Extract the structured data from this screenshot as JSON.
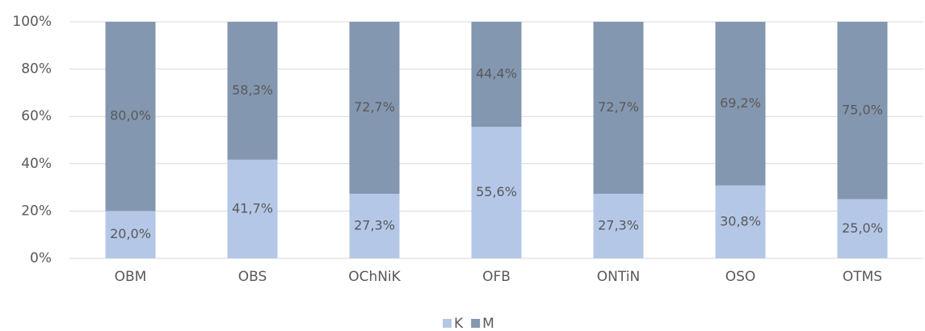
{
  "chart_data": {
    "type": "stacked_bar",
    "categories": [
      "OBM",
      "OBS",
      "OChNiK",
      "OFB",
      "ONTiN",
      "OSO",
      "OTMS"
    ],
    "series": [
      {
        "name": "K",
        "color": "#b4c7e7",
        "values": [
          20.0,
          41.7,
          27.3,
          55.6,
          27.3,
          30.8,
          25.0
        ],
        "value_labels": [
          "20,0%",
          "41,7%",
          "27,3%",
          "55,6%",
          "27,3%",
          "30,8%",
          "25,0%"
        ]
      },
      {
        "name": "M",
        "color": "#8497b0",
        "values": [
          80.0,
          58.3,
          72.7,
          44.4,
          72.7,
          69.2,
          75.0
        ],
        "value_labels": [
          "80,0%",
          "58,3%",
          "72,7%",
          "44,4%",
          "72,7%",
          "69,2%",
          "75,0%"
        ]
      }
    ],
    "ylim": [
      0,
      100
    ],
    "yticks": [
      {
        "value": 0,
        "label": "0%"
      },
      {
        "value": 20,
        "label": "20%"
      },
      {
        "value": 40,
        "label": "40%"
      },
      {
        "value": 60,
        "label": "60%"
      },
      {
        "value": 80,
        "label": "80%"
      },
      {
        "value": 100,
        "label": "100%"
      }
    ],
    "grid": true,
    "legend": "bottom"
  }
}
